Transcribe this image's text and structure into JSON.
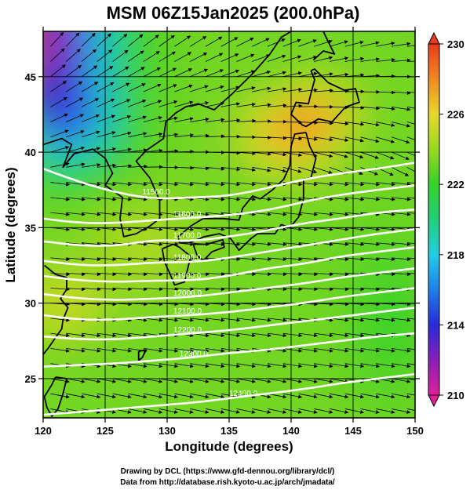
{
  "chart_data": {
    "type": "heatmap",
    "title": "MSM 06Z15Jan2025 (200.0hPa)",
    "xlabel": "Longitude (degrees)",
    "ylabel": "Latitude  (degrees)",
    "xlim": [
      120,
      150
    ],
    "ylim": [
      22.4,
      48
    ],
    "xticks": [
      120,
      125,
      130,
      135,
      140,
      145,
      150
    ],
    "xtick_labels": [
      "120",
      "125",
      "130",
      "135",
      "140",
      "145",
      "150"
    ],
    "yticks": [
      25,
      30,
      35,
      40,
      45
    ],
    "ytick_labels": [
      "25",
      "30",
      "35",
      "40",
      "45"
    ],
    "grid": true,
    "shaded_field": {
      "description_units": "temperature colour scale",
      "colorbar_range": [
        210,
        230
      ],
      "colorbar_ticks": [
        210,
        214,
        218,
        222,
        226,
        230
      ],
      "colorbar_tick_labels": [
        "210",
        "214",
        "218",
        "222",
        "226",
        "230"
      ],
      "colorbar_stops": [
        {
          "value": 210,
          "color": "#e0209a"
        },
        {
          "value": 212,
          "color": "#8a1fb8"
        },
        {
          "value": 214,
          "color": "#2a2ad8"
        },
        {
          "value": 216,
          "color": "#1f7fe8"
        },
        {
          "value": 218,
          "color": "#22cde6"
        },
        {
          "value": 220,
          "color": "#20d07a"
        },
        {
          "value": 222,
          "color": "#36d22a"
        },
        {
          "value": 224,
          "color": "#9ad81e"
        },
        {
          "value": 226,
          "color": "#e8d82a"
        },
        {
          "value": 228,
          "color": "#f08a20"
        },
        {
          "value": 230,
          "color": "#e83c1c"
        }
      ],
      "features": [
        {
          "label": "warm maximum",
          "lon": 139.5,
          "lat": 40.8,
          "value": 228
        },
        {
          "label": "warm maximum",
          "lon": 142.5,
          "lat": 42.8,
          "value": 228
        },
        {
          "label": "cold minimum",
          "lon": 120.5,
          "lat": 47.5,
          "value": 210
        },
        {
          "label": "warm band",
          "lon": 121.5,
          "lat": 30.0,
          "value": 225.5
        }
      ]
    },
    "contours": [
      {
        "value": 11500,
        "label": "11500.0",
        "points": [
          [
            120,
            38.9
          ],
          [
            123,
            38.0
          ],
          [
            126,
            37.3
          ],
          [
            129,
            36.9
          ],
          [
            132,
            37.0
          ],
          [
            135,
            37.1
          ],
          [
            138,
            37.6
          ],
          [
            141,
            38.2
          ],
          [
            144,
            38.6
          ],
          [
            147,
            38.9
          ],
          [
            150,
            39.3
          ]
        ]
      },
      {
        "value": 11600,
        "label": "11600.0",
        "points": [
          [
            120,
            35.6
          ],
          [
            123,
            35.3
          ],
          [
            126,
            35.3
          ],
          [
            129,
            35.5
          ],
          [
            131,
            35.6
          ],
          [
            133,
            35.7
          ],
          [
            136,
            35.9
          ],
          [
            139,
            36.3
          ],
          [
            142,
            36.9
          ],
          [
            145,
            37.3
          ],
          [
            148,
            37.6
          ],
          [
            150,
            37.8
          ]
        ]
      },
      {
        "value": 11700,
        "label": "11700.0",
        "points": [
          [
            120,
            34.1
          ],
          [
            123,
            33.8
          ],
          [
            126,
            33.8
          ],
          [
            129,
            34.2
          ],
          [
            132,
            34.1
          ],
          [
            135,
            34.4
          ],
          [
            138,
            34.8
          ],
          [
            141,
            35.3
          ],
          [
            144,
            35.6
          ],
          [
            147,
            36.0
          ],
          [
            150,
            36.2
          ]
        ]
      },
      {
        "value": 11800,
        "label": "11800.0",
        "points": [
          [
            120,
            32.8
          ],
          [
            123,
            32.5
          ],
          [
            126,
            32.5
          ],
          [
            129,
            32.7
          ],
          [
            132,
            32.7
          ],
          [
            135,
            33.0
          ],
          [
            138,
            33.4
          ],
          [
            141,
            33.8
          ],
          [
            144,
            34.2
          ],
          [
            147,
            34.6
          ],
          [
            150,
            34.9
          ]
        ]
      },
      {
        "value": 11900,
        "label": "11900.0",
        "points": [
          [
            120,
            31.8
          ],
          [
            123,
            31.5
          ],
          [
            126,
            31.4
          ],
          [
            129,
            31.5
          ],
          [
            132,
            31.5
          ],
          [
            135,
            31.8
          ],
          [
            138,
            32.3
          ],
          [
            141,
            32.6
          ],
          [
            144,
            33.1
          ],
          [
            147,
            33.4
          ],
          [
            150,
            33.7
          ]
        ]
      },
      {
        "value": 12000,
        "label": "12000.0",
        "points": [
          [
            120,
            30.6
          ],
          [
            123,
            30.3
          ],
          [
            126,
            30.2
          ],
          [
            129,
            30.3
          ],
          [
            132,
            30.4
          ],
          [
            135,
            30.7
          ],
          [
            138,
            31.0
          ],
          [
            141,
            31.3
          ],
          [
            144,
            31.7
          ],
          [
            147,
            32.0
          ],
          [
            150,
            32.3
          ]
        ]
      },
      {
        "value": 12100,
        "label": "12100.0",
        "points": [
          [
            120,
            29.2
          ],
          [
            123,
            28.9
          ],
          [
            126,
            28.9
          ],
          [
            129,
            29.1
          ],
          [
            132,
            29.2
          ],
          [
            135,
            29.4
          ],
          [
            138,
            29.7
          ],
          [
            141,
            30.0
          ],
          [
            144,
            30.4
          ],
          [
            147,
            30.7
          ],
          [
            150,
            31.0
          ]
        ]
      },
      {
        "value": 12200,
        "label": "12200.0",
        "points": [
          [
            120,
            27.8
          ],
          [
            123,
            27.6
          ],
          [
            126,
            27.6
          ],
          [
            129,
            27.8
          ],
          [
            132,
            28.0
          ],
          [
            135,
            28.2
          ],
          [
            138,
            28.5
          ],
          [
            141,
            28.8
          ],
          [
            144,
            29.1
          ],
          [
            147,
            29.4
          ],
          [
            150,
            29.7
          ]
        ]
      },
      {
        "value": 12300,
        "label": "12300.0",
        "points": [
          [
            120,
            25.8
          ],
          [
            123,
            25.9
          ],
          [
            126,
            26.0
          ],
          [
            129,
            26.2
          ],
          [
            132,
            26.4
          ],
          [
            135,
            26.7
          ],
          [
            138,
            26.9
          ],
          [
            141,
            27.2
          ],
          [
            144,
            27.5
          ],
          [
            147,
            27.8
          ],
          [
            150,
            28.0
          ]
        ]
      },
      {
        "value": 12400,
        "label": "12400.0",
        "points": [
          [
            120,
            22.6
          ],
          [
            123,
            22.8
          ],
          [
            126,
            23.0
          ],
          [
            129,
            23.2
          ],
          [
            132,
            23.4
          ],
          [
            135,
            23.7
          ],
          [
            138,
            24.0
          ],
          [
            141,
            24.3
          ],
          [
            144,
            24.7
          ],
          [
            147,
            25.0
          ],
          [
            150,
            25.3
          ]
        ]
      }
    ],
    "wind_vectors": {
      "style": "arrows",
      "grid_step_deg": [
        1.25,
        1.0
      ],
      "general_direction": "west to east, from northwest north of 38N"
    },
    "coastline": true
  },
  "credits": {
    "line1": "Drawing by DCL (https://www.gfd-dennou.org/library/dcl/)",
    "line2": "Data from http://database.rish.kyoto-u.ac.jp/arch/jmadata/"
  }
}
